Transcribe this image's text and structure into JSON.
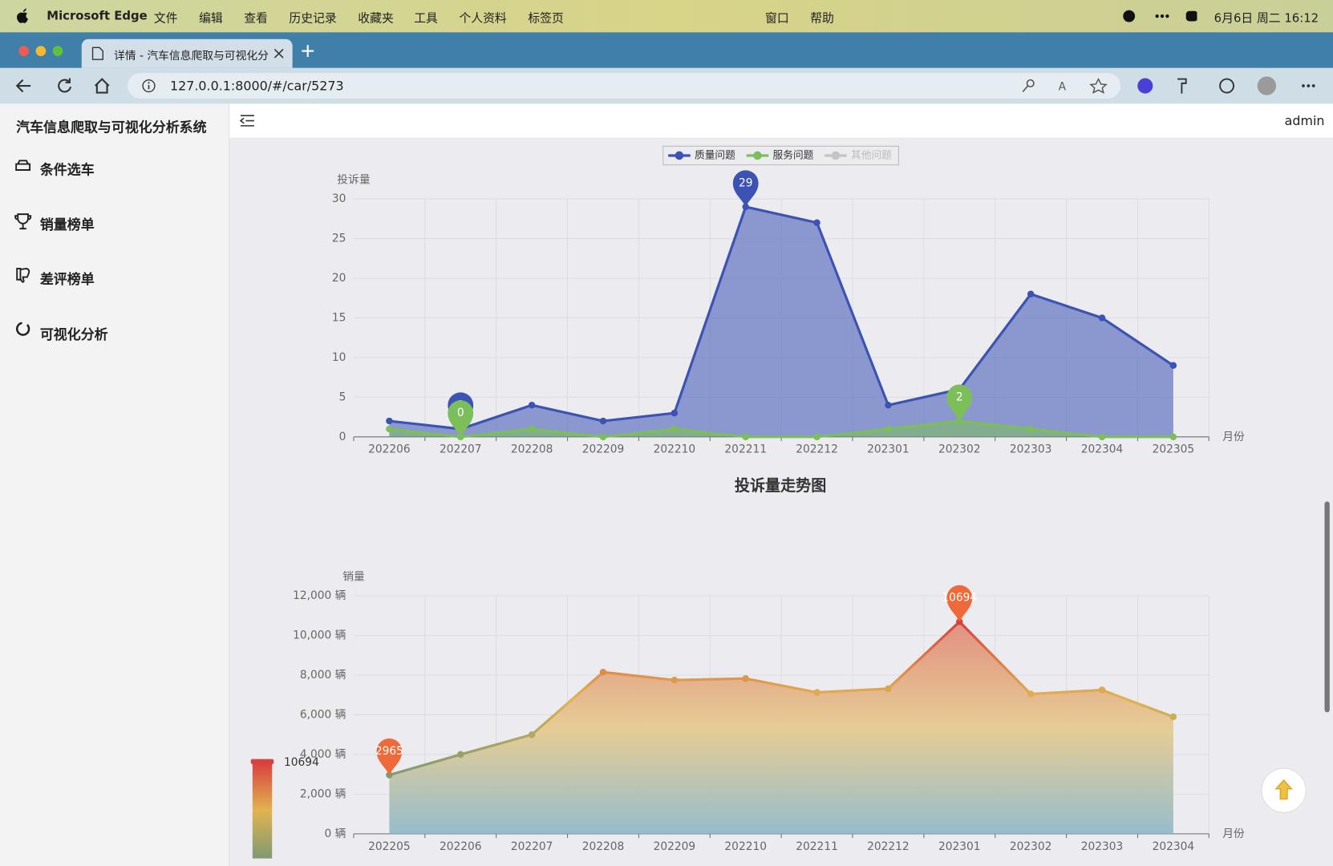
{
  "menu_bar": {
    "app": "Microsoft Edge",
    "items": [
      "文件",
      "编辑",
      "查看",
      "历史记录",
      "收藏夹",
      "工具",
      "个人资料",
      "标签页",
      "窗口",
      "帮助"
    ],
    "clock": "6月6日 周二 16:12"
  },
  "browser": {
    "tab_title": "详情 - 汽车信息爬取与可视化分",
    "url": "127.0.0.1:8000/#/car/5273"
  },
  "sidebar": {
    "title": "汽车信息爬取与可视化分析系统",
    "items": [
      "条件选车",
      "销量榜单",
      "差评榜单",
      "可视化分析"
    ]
  },
  "header": {
    "user": "admin"
  },
  "chart_data": [
    {
      "type": "line",
      "title": "投诉量走势图",
      "y_label": "投诉量",
      "x_label": "月份",
      "categories": [
        "202206",
        "202207",
        "202208",
        "202209",
        "202210",
        "202211",
        "202212",
        "202301",
        "202302",
        "202303",
        "202304",
        "202305"
      ],
      "series": [
        {
          "name": "质量问题",
          "color": "#3d53b4",
          "values": [
            2,
            1,
            4,
            2,
            3,
            29,
            27,
            4,
            6,
            18,
            15,
            9
          ]
        },
        {
          "name": "服务问题",
          "color": "#7cbf5a",
          "values": [
            1,
            0,
            1,
            0,
            1,
            0,
            0,
            1,
            2,
            1,
            0,
            0
          ]
        },
        {
          "name": "其他问题",
          "color": "#c4c4c4",
          "hidden": true
        }
      ],
      "ylim": [
        0,
        30
      ],
      "yticks": [
        0,
        5,
        10,
        15,
        20,
        25,
        30
      ],
      "grid": true,
      "area": true,
      "mark_points": [
        "max",
        "min"
      ]
    },
    {
      "type": "line",
      "y_label": "销量",
      "x_label": "月份",
      "categories": [
        "202205",
        "202206",
        "202207",
        "202208",
        "202209",
        "202210",
        "202211",
        "202212",
        "202301",
        "202302",
        "202303",
        "202304"
      ],
      "values": [
        2965,
        4000,
        5000,
        8150,
        7750,
        7830,
        7130,
        7320,
        10694,
        7050,
        7250,
        5900
      ],
      "ylim": [
        0,
        12000
      ],
      "yticks": [
        {
          "value": 0,
          "label": "0 辆"
        },
        {
          "value": 2000,
          "label": "2,000 辆"
        },
        {
          "value": 4000,
          "label": "4,000 辆"
        },
        {
          "value": 6000,
          "label": "6,000 辆"
        },
        {
          "value": 8000,
          "label": "8,000 辆"
        },
        {
          "value": 10000,
          "label": "10,000 辆"
        },
        {
          "value": 12000,
          "label": "12,000 辆"
        }
      ],
      "grid": true,
      "area": true,
      "mark_points": [
        "max",
        "min"
      ],
      "mark_point_color": "#ef6a3a",
      "visual_map": {
        "colors": [
          "#d8413d",
          "#e0b450",
          "#7f9a72"
        ],
        "area_colors": [
          "#e08676",
          "#e6c98a",
          "#8db8c8"
        ]
      }
    }
  ]
}
